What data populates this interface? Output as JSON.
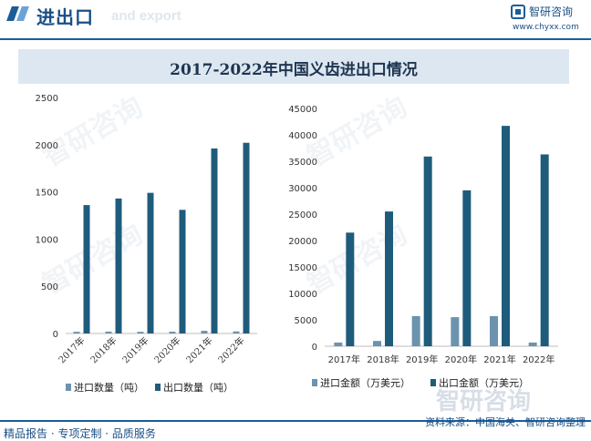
{
  "header": {
    "title": "进出口",
    "subtitle": "and export",
    "brand_name": "智研咨询",
    "brand_url": "www.chyxx.com"
  },
  "watermark": "智研咨询",
  "footer": {
    "left": "精品报告 · 专项定制 · 品质服务",
    "right": "资料来源：中国海关、智研咨询整理"
  },
  "colors": {
    "accent": "#1a5d9b",
    "import": "#6b93ae",
    "export": "#1f5c7c"
  },
  "chart_data": [
    {
      "type": "bar",
      "title": "2017-2022年中国义齿进出口情况",
      "categories": [
        "2017年",
        "2018年",
        "2019年",
        "2020年",
        "2021年",
        "2022年"
      ],
      "series": [
        {
          "name": "进口数量（吨）",
          "values": [
            18,
            20,
            18,
            19,
            28,
            22
          ]
        },
        {
          "name": "出口数量（吨）",
          "values": [
            1360,
            1430,
            1490,
            1310,
            1960,
            2020
          ]
        }
      ],
      "ylim": [
        0,
        2500
      ],
      "yticks": [
        0,
        500,
        1000,
        1500,
        2000,
        2500
      ],
      "legend": "bottom"
    },
    {
      "type": "bar",
      "categories": [
        "2017年",
        "2018年",
        "2019年",
        "2020年",
        "2021年",
        "2022年"
      ],
      "series": [
        {
          "name": "进口金额（万美元）",
          "values": [
            700,
            1000,
            5700,
            5500,
            5700,
            700
          ]
        },
        {
          "name": "出口金额（万美元）",
          "values": [
            21500,
            25500,
            35900,
            29500,
            41700,
            36300
          ]
        }
      ],
      "ylim": [
        0,
        45000
      ],
      "yticks": [
        0,
        5000,
        10000,
        15000,
        20000,
        25000,
        30000,
        35000,
        40000,
        45000
      ],
      "legend": "bottom"
    }
  ]
}
